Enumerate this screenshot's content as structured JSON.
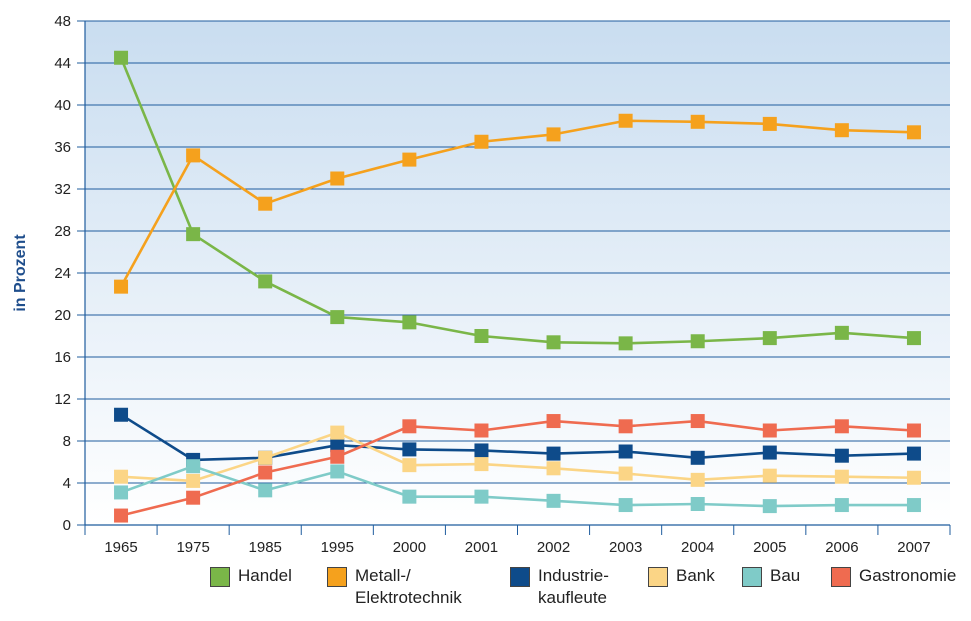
{
  "chart_data": {
    "type": "line",
    "ylabel": "in Prozent",
    "xlabel": "",
    "ylim": [
      0,
      48
    ],
    "yticks": [
      0,
      4,
      8,
      12,
      16,
      20,
      24,
      28,
      32,
      36,
      40,
      44,
      48
    ],
    "categories": [
      "1965",
      "1975",
      "1985",
      "1995",
      "2000",
      "2001",
      "2002",
      "2003",
      "2004",
      "2005",
      "2006",
      "2007"
    ],
    "grid": true,
    "legend_position": "bottom",
    "series": [
      {
        "name": "Handel",
        "color": "#7ab648",
        "values": [
          44.5,
          27.7,
          23.2,
          19.8,
          19.3,
          18.0,
          17.4,
          17.3,
          17.5,
          17.8,
          18.3,
          17.8
        ]
      },
      {
        "name": "Metall-/\nElektrotechnik",
        "color": "#f5a11d",
        "values": [
          22.7,
          35.2,
          30.6,
          33.0,
          34.8,
          36.5,
          37.2,
          38.5,
          38.4,
          38.2,
          37.6,
          37.4
        ]
      },
      {
        "name": "Industrie-\nkaufleute",
        "color": "#0e4b8a",
        "values": [
          10.5,
          6.2,
          6.4,
          7.6,
          7.2,
          7.1,
          6.8,
          7.0,
          6.4,
          6.9,
          6.6,
          6.8
        ]
      },
      {
        "name": "Bank",
        "color": "#fbd586",
        "values": [
          4.6,
          4.2,
          6.4,
          8.8,
          5.7,
          5.8,
          5.4,
          4.9,
          4.3,
          4.7,
          4.6,
          4.5
        ]
      },
      {
        "name": "Bau",
        "color": "#7fcbc8",
        "values": [
          3.1,
          5.6,
          3.3,
          5.1,
          2.7,
          2.7,
          2.3,
          1.9,
          2.0,
          1.8,
          1.9,
          1.9
        ]
      },
      {
        "name": "Gastronomie",
        "color": "#ef6b50",
        "values": [
          0.9,
          2.6,
          5.0,
          6.5,
          9.4,
          9.0,
          9.9,
          9.4,
          9.9,
          9.0,
          9.4,
          9.0
        ]
      }
    ]
  }
}
